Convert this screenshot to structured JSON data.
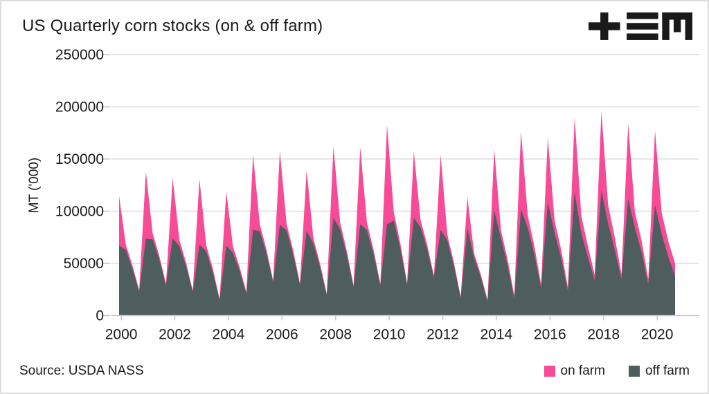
{
  "header": {
    "title": "US Quarterly corn stocks (on & off farm)",
    "logo": {
      "glyphs": [
        "plus",
        "triple-bar",
        "m"
      ],
      "color": "#1a1a1a"
    }
  },
  "footer": {
    "source": "Source: USDA NASS",
    "legend": {
      "items": [
        {
          "label": "on farm",
          "color": "#f74b97"
        },
        {
          "label": "off farm",
          "color": "#4e5d5d"
        }
      ]
    }
  },
  "chart_data": {
    "type": "area",
    "stacked": true,
    "title": "US Quarterly corn stocks (on & off farm)",
    "xlabel": "",
    "ylabel": "MT ('000)",
    "ylim": [
      0,
      250000
    ],
    "yticks": [
      0,
      50000,
      100000,
      150000,
      200000,
      250000
    ],
    "xticks": [
      "2000",
      "2002",
      "2004",
      "2006",
      "2008",
      "2010",
      "2012",
      "2014",
      "2016",
      "2018",
      "2020"
    ],
    "x_start_year_frac": 1999.92,
    "x_end_year_frac": 2020.67,
    "grid": "horizontal",
    "legend_position": "bottom-right",
    "axis_color": "#c9c9c9",
    "grid_color": "#dedede",
    "text_color": "#1a1a1a",
    "quarters": [
      "1999 Dec",
      "2000 Mar",
      "2000 Jun",
      "2000 Sep",
      "2000 Dec",
      "2001 Mar",
      "2001 Jun",
      "2001 Sep",
      "2001 Dec",
      "2002 Mar",
      "2002 Jun",
      "2002 Sep",
      "2002 Dec",
      "2003 Mar",
      "2003 Jun",
      "2003 Sep",
      "2003 Dec",
      "2004 Mar",
      "2004 Jun",
      "2004 Sep",
      "2004 Dec",
      "2005 Mar",
      "2005 Jun",
      "2005 Sep",
      "2005 Dec",
      "2006 Mar",
      "2006 Jun",
      "2006 Sep",
      "2006 Dec",
      "2007 Mar",
      "2007 Jun",
      "2007 Sep",
      "2007 Dec",
      "2008 Mar",
      "2008 Jun",
      "2008 Sep",
      "2008 Dec",
      "2009 Mar",
      "2009 Jun",
      "2009 Sep",
      "2009 Dec",
      "2010 Mar",
      "2010 Jun",
      "2010 Sep",
      "2010 Dec",
      "2011 Mar",
      "2011 Jun",
      "2011 Sep",
      "2011 Dec",
      "2012 Mar",
      "2012 Jun",
      "2012 Sep",
      "2012 Dec",
      "2013 Mar",
      "2013 Jun",
      "2013 Sep",
      "2013 Dec",
      "2014 Mar",
      "2014 Jun",
      "2014 Sep",
      "2014 Dec",
      "2015 Mar",
      "2015 Jun",
      "2015 Sep",
      "2015 Dec",
      "2016 Mar",
      "2016 Jun",
      "2016 Sep",
      "2016 Dec",
      "2017 Mar",
      "2017 Jun",
      "2017 Sep",
      "2017 Dec",
      "2018 Mar",
      "2018 Jun",
      "2018 Sep",
      "2018 Dec",
      "2019 Mar",
      "2019 Jun",
      "2019 Sep",
      "2019 Dec",
      "2020 Mar",
      "2020 Jun",
      "2020 Sep"
    ],
    "series": [
      {
        "name": "off farm",
        "color": "#4e5d5d",
        "values": [
          67000,
          63000,
          45000,
          23000,
          73500,
          73000,
          54000,
          29000,
          74000,
          66500,
          47500,
          22500,
          68000,
          61500,
          41500,
          14500,
          67000,
          60000,
          43000,
          21000,
          82000,
          81000,
          59500,
          32000,
          87000,
          81500,
          58500,
          29500,
          81000,
          69000,
          47000,
          19500,
          93500,
          82500,
          58000,
          27500,
          87500,
          82000,
          59000,
          29000,
          87500,
          91000,
          64000,
          29500,
          93500,
          84500,
          63500,
          36500,
          82000,
          72000,
          47500,
          16500,
          83500,
          55500,
          37000,
          13500,
          101000,
          74000,
          48000,
          16500,
          102000,
          84000,
          58500,
          26500,
          108500,
          79500,
          55000,
          23500,
          118500,
          79000,
          55500,
          34000,
          120000,
          88000,
          63000,
          35000,
          112000,
          84000,
          61000,
          30000,
          106000,
          78000,
          56000,
          38000
        ]
      },
      {
        "name": "on farm",
        "color": "#f74b97",
        "values": [
          47500,
          5000,
          3000,
          1500,
          64500,
          6000,
          3500,
          1500,
          58000,
          6000,
          3500,
          1500,
          63000,
          6000,
          3500,
          1500,
          52000,
          6000,
          3500,
          1500,
          72000,
          6500,
          4000,
          1500,
          70500,
          6500,
          4000,
          1500,
          58500,
          5000,
          3000,
          1500,
          68500,
          6500,
          4000,
          1500,
          73500,
          7000,
          4000,
          1500,
          95500,
          8500,
          5000,
          1500,
          63500,
          7000,
          4500,
          1500,
          72000,
          5500,
          3000,
          1500,
          30000,
          4000,
          2500,
          1500,
          58500,
          8000,
          6000,
          2500,
          74500,
          12000,
          8000,
          3500,
          62000,
          12000,
          8000,
          3500,
          71500,
          16500,
          11000,
          5000,
          76000,
          18000,
          12000,
          5000,
          72000,
          15000,
          11000,
          5000,
          71500,
          20500,
          15000,
          12000
        ]
      }
    ]
  }
}
